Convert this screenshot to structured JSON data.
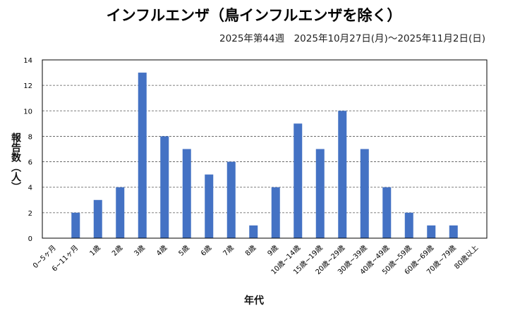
{
  "chart_data": {
    "type": "bar",
    "title": "インフルエンザ（鳥インフルエンザを除く）",
    "subtitle": "2025年第44週　2025年10月27日(月)～2025年11月2日(日)",
    "xlabel": "年代",
    "ylabel": "報告数（人）",
    "ylim": [
      0,
      14
    ],
    "yticks": [
      0,
      2,
      4,
      6,
      8,
      10,
      12,
      14
    ],
    "grid": true,
    "bar_color": "#4472C4",
    "categories": [
      "0~5ヶ月",
      "6~11ヶ月",
      "1歳",
      "2歳",
      "3歳",
      "4歳",
      "5歳",
      "6歳",
      "7歳",
      "8歳",
      "9歳",
      "10歳~14歳",
      "15歳~19歳",
      "20歳~29歳",
      "30歳~39歳",
      "40歳~49歳",
      "50歳~59歳",
      "60歳~69歳",
      "70歳~79歳",
      "80歳以上"
    ],
    "values": [
      0,
      2,
      3,
      4,
      13,
      8,
      7,
      5,
      6,
      1,
      4,
      9,
      7,
      10,
      7,
      4,
      2,
      1,
      1,
      0
    ]
  }
}
